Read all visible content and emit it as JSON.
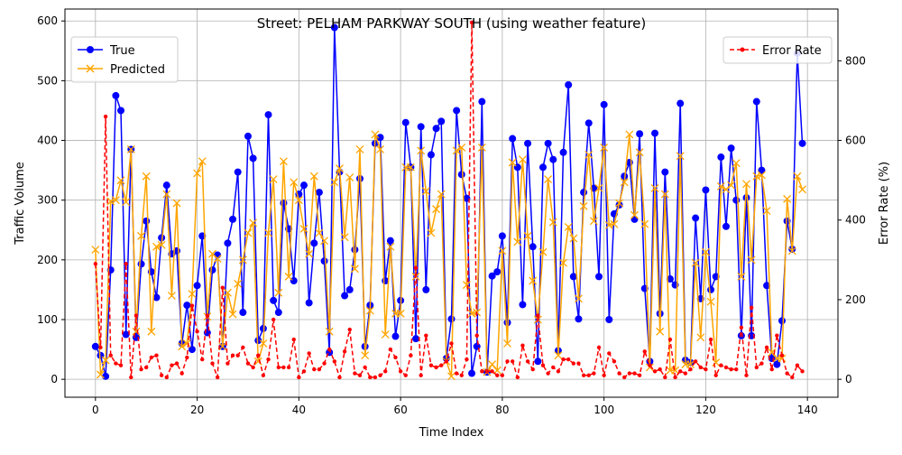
{
  "chart_data": {
    "type": "line",
    "title": "Street: PELHAM PARKWAY SOUTH (using weather feature)",
    "xlabel": "Time Index",
    "ylabel": "Traffic Volume",
    "y2label": "Error Rate (%)",
    "xlim": [
      -6,
      146
    ],
    "ylim": [
      -30,
      620
    ],
    "y2lim": [
      -45,
      930
    ],
    "xticks": [
      0,
      20,
      40,
      60,
      80,
      100,
      120,
      140
    ],
    "yticks": [
      0,
      100,
      200,
      300,
      400,
      500,
      600
    ],
    "y2ticks": [
      0,
      200,
      400,
      600,
      800
    ],
    "grid": true,
    "legend_left": "top-left",
    "legend_right": "top-right",
    "colors": {
      "true": "#0000ff",
      "predicted": "#ffa500",
      "error": "#ff0000",
      "grid": "#b0b0b0",
      "axis": "#000000"
    },
    "series": [
      {
        "name": "True",
        "axis": "left",
        "marker": "circle",
        "values": [
          55,
          40,
          5,
          183,
          475,
          450,
          75,
          385,
          70,
          193,
          265,
          180,
          137,
          237,
          325,
          210,
          215,
          60,
          124,
          50,
          157,
          240,
          78,
          183,
          208,
          55,
          228,
          268,
          347,
          112,
          407,
          370,
          65,
          85,
          443,
          132,
          112,
          295,
          252,
          165,
          310,
          325,
          128,
          228,
          313,
          198,
          45,
          589,
          347,
          140,
          150,
          217,
          336,
          55,
          124,
          395,
          405,
          165,
          232,
          72,
          132,
          430,
          355,
          68,
          423,
          150,
          376,
          420,
          432,
          35,
          101,
          450,
          343,
          303,
          10,
          55,
          465,
          12,
          173,
          180,
          240,
          95,
          403,
          355,
          125,
          395,
          222,
          30,
          355,
          395,
          368,
          48,
          380,
          493,
          172,
          101,
          313,
          429,
          320,
          172,
          460,
          100,
          277,
          292,
          340,
          363,
          268,
          411,
          152,
          30,
          412,
          110,
          347,
          168,
          158,
          462,
          32,
          28,
          270,
          135,
          317,
          150,
          172,
          372,
          256,
          387,
          300,
          73,
          304,
          73,
          465,
          350,
          157,
          35,
          25,
          98,
          265,
          218,
          546,
          395
        ]
      },
      {
        "name": "Predicted",
        "axis": "left",
        "marker": "x",
        "values": [
          217,
          8,
          32,
          298,
          300,
          333,
          297,
          385,
          80,
          240,
          340,
          80,
          222,
          225,
          310,
          140,
          295,
          55,
          60,
          143,
          345,
          365,
          105,
          210,
          202,
          55,
          145,
          109,
          160,
          200,
          245,
          262,
          30,
          60,
          245,
          335,
          145,
          365,
          172,
          330,
          300,
          252,
          210,
          340,
          245,
          232,
          80,
          330,
          353,
          238,
          338,
          185,
          385,
          40,
          115,
          410,
          385,
          75,
          222,
          110,
          110,
          355,
          355,
          172,
          383,
          315,
          245,
          285,
          310,
          30,
          5,
          383,
          388,
          158,
          110,
          112,
          388,
          12,
          25,
          15,
          215,
          60,
          363,
          230,
          368,
          240,
          165,
          100,
          213,
          335,
          263,
          40,
          195,
          255,
          236,
          135,
          290,
          376,
          265,
          320,
          388,
          258,
          260,
          295,
          330,
          410,
          275,
          380,
          260,
          20,
          320,
          80,
          310,
          15,
          15,
          374,
          25,
          25,
          195,
          70,
          213,
          130,
          28,
          323,
          318,
          325,
          362,
          172,
          327,
          200,
          340,
          342,
          282,
          45,
          35,
          35,
          302,
          215,
          340,
          318
        ]
      },
      {
        "name": "Error Rate",
        "axis": "right",
        "marker": "dot",
        "values": [
          290,
          80,
          660,
          60,
          40,
          35,
          290,
          5,
          160,
          25,
          30,
          55,
          60,
          10,
          5,
          35,
          40,
          15,
          55,
          185,
          120,
          50,
          160,
          40,
          5,
          230,
          40,
          60,
          60,
          80,
          40,
          30,
          60,
          10,
          50,
          150,
          30,
          30,
          30,
          100,
          5,
          20,
          65,
          25,
          25,
          40,
          75,
          45,
          5,
          70,
          125,
          15,
          10,
          30,
          5,
          5,
          10,
          20,
          75,
          55,
          20,
          10,
          60,
          280,
          10,
          110,
          35,
          30,
          35,
          45,
          90,
          15,
          10,
          50,
          896,
          110,
          20,
          20,
          20,
          10,
          10,
          45,
          45,
          5,
          85,
          45,
          25,
          160,
          35,
          15,
          30,
          20,
          50,
          50,
          40,
          40,
          10,
          10,
          15,
          80,
          10,
          65,
          45,
          15,
          5,
          15,
          15,
          10,
          70,
          35,
          20,
          25,
          5,
          100,
          5,
          20,
          15,
          25,
          45,
          30,
          25,
          100,
          10,
          35,
          30,
          25,
          25,
          130,
          10,
          180,
          30,
          40,
          80,
          25,
          110,
          60,
          15,
          5,
          35,
          20
        ]
      }
    ]
  }
}
